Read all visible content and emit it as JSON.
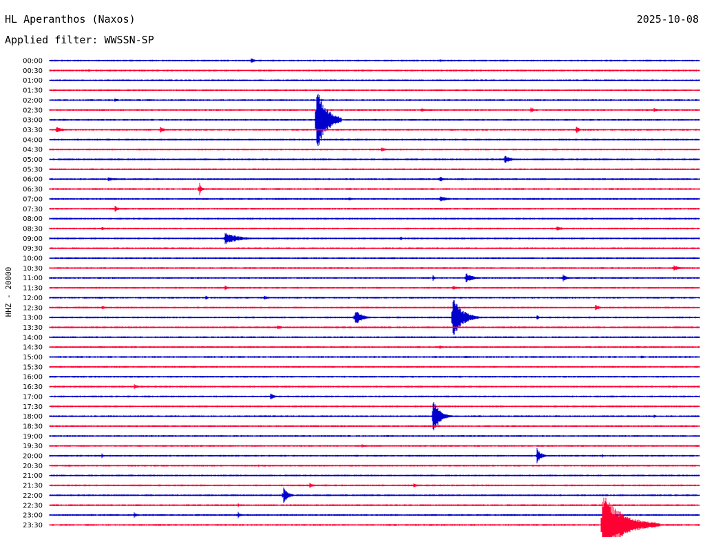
{
  "header": {
    "station": "HL Aperanthos (Naxos)",
    "date": "2025-10-08",
    "filter": "Applied filter: WWSSN-SP"
  },
  "chart_data": {
    "type": "line",
    "title": "HL Aperanthos (Naxos)",
    "subtitle": "Applied filter: WWSSN-SP",
    "ylabel": "HHZ - 20000",
    "xlabel": "",
    "grid": false,
    "colors": [
      "#0000cc",
      "#ff0033"
    ],
    "categories": [
      "00:00",
      "00:30",
      "01:00",
      "01:30",
      "02:00",
      "02:30",
      "03:00",
      "03:30",
      "04:00",
      "04:30",
      "05:00",
      "05:30",
      "06:00",
      "06:30",
      "07:00",
      "07:30",
      "08:00",
      "08:30",
      "09:00",
      "09:30",
      "10:00",
      "10:30",
      "11:00",
      "11:30",
      "12:00",
      "12:30",
      "13:00",
      "13:30",
      "14:00",
      "14:30",
      "15:00",
      "15:30",
      "16:00",
      "16:30",
      "17:00",
      "17:30",
      "18:00",
      "18:30",
      "19:00",
      "19:30",
      "20:00",
      "20:30",
      "21:00",
      "21:30",
      "22:00",
      "22:30",
      "23:00",
      "23:30"
    ],
    "events": [
      {
        "row": 0,
        "x": 0.31,
        "amp": 4,
        "dur": 0.02
      },
      {
        "row": 0,
        "x": 0.6,
        "amp": 2.5,
        "dur": 0.01
      },
      {
        "row": 1,
        "x": 0.06,
        "amp": 3,
        "dur": 0.01
      },
      {
        "row": 1,
        "x": 0.48,
        "amp": 2,
        "dur": 0.01
      },
      {
        "row": 4,
        "x": 0.1,
        "amp": 3,
        "dur": 0.02
      },
      {
        "row": 5,
        "x": 0.57,
        "amp": 3,
        "dur": 0.03
      },
      {
        "row": 5,
        "x": 0.74,
        "amp": 4,
        "dur": 0.02
      },
      {
        "row": 5,
        "x": 0.93,
        "amp": 3,
        "dur": 0.02
      },
      {
        "row": 6,
        "x": 0.41,
        "amp": 58,
        "dur": 0.04
      },
      {
        "row": 7,
        "x": 0.01,
        "amp": 5,
        "dur": 0.03
      },
      {
        "row": 7,
        "x": 0.17,
        "amp": 5,
        "dur": 0.02
      },
      {
        "row": 7,
        "x": 0.81,
        "amp": 6,
        "dur": 0.015
      },
      {
        "row": 9,
        "x": 0.51,
        "amp": 4,
        "dur": 0.02
      },
      {
        "row": 10,
        "x": 0.7,
        "amp": 6,
        "dur": 0.03
      },
      {
        "row": 12,
        "x": 0.09,
        "amp": 3,
        "dur": 0.04
      },
      {
        "row": 12,
        "x": 0.6,
        "amp": 5,
        "dur": 0.02
      },
      {
        "row": 13,
        "x": 0.23,
        "amp": 12,
        "dur": 0.01
      },
      {
        "row": 14,
        "x": 0.46,
        "amp": 3,
        "dur": 0.02
      },
      {
        "row": 14,
        "x": 0.6,
        "amp": 4,
        "dur": 0.05
      },
      {
        "row": 15,
        "x": 0.1,
        "amp": 5,
        "dur": 0.02
      },
      {
        "row": 17,
        "x": 0.08,
        "amp": 3,
        "dur": 0.02
      },
      {
        "row": 17,
        "x": 0.78,
        "amp": 5,
        "dur": 0.02
      },
      {
        "row": 18,
        "x": 0.27,
        "amp": 9,
        "dur": 0.06
      },
      {
        "row": 18,
        "x": 0.54,
        "amp": 4,
        "dur": 0.01
      },
      {
        "row": 21,
        "x": 0.96,
        "amp": 6,
        "dur": 0.02
      },
      {
        "row": 22,
        "x": 0.59,
        "amp": 5,
        "dur": 0.01
      },
      {
        "row": 22,
        "x": 0.64,
        "amp": 8,
        "dur": 0.03
      },
      {
        "row": 22,
        "x": 0.79,
        "amp": 6,
        "dur": 0.02
      },
      {
        "row": 23,
        "x": 0.27,
        "amp": 6,
        "dur": 0.01
      },
      {
        "row": 23,
        "x": 0.62,
        "amp": 3,
        "dur": 0.03
      },
      {
        "row": 24,
        "x": 0.24,
        "amp": 4,
        "dur": 0.01
      },
      {
        "row": 24,
        "x": 0.33,
        "amp": 4,
        "dur": 0.02
      },
      {
        "row": 25,
        "x": 0.08,
        "amp": 3,
        "dur": 0.02
      },
      {
        "row": 25,
        "x": 0.84,
        "amp": 4,
        "dur": 0.02
      },
      {
        "row": 26,
        "x": 0.47,
        "amp": 12,
        "dur": 0.03
      },
      {
        "row": 26,
        "x": 0.62,
        "amp": 35,
        "dur": 0.04
      },
      {
        "row": 26,
        "x": 0.75,
        "amp": 5,
        "dur": 0.01
      },
      {
        "row": 27,
        "x": 0.35,
        "amp": 3,
        "dur": 0.03
      },
      {
        "row": 29,
        "x": 0.6,
        "amp": 3,
        "dur": 0.02
      },
      {
        "row": 30,
        "x": 0.64,
        "amp": 3,
        "dur": 0.01
      },
      {
        "row": 30,
        "x": 0.91,
        "amp": 3,
        "dur": 0.02
      },
      {
        "row": 33,
        "x": 0.13,
        "amp": 4,
        "dur": 0.02
      },
      {
        "row": 34,
        "x": 0.34,
        "amp": 6,
        "dur": 0.015
      },
      {
        "row": 36,
        "x": 0.59,
        "amp": 26,
        "dur": 0.03
      },
      {
        "row": 36,
        "x": 0.93,
        "amp": 3,
        "dur": 0.01
      },
      {
        "row": 39,
        "x": 0.48,
        "amp": 3,
        "dur": 0.02
      },
      {
        "row": 40,
        "x": 0.08,
        "amp": 4,
        "dur": 0.01
      },
      {
        "row": 40,
        "x": 0.75,
        "amp": 11,
        "dur": 0.02
      },
      {
        "row": 40,
        "x": 0.85,
        "amp": 3,
        "dur": 0.01
      },
      {
        "row": 41,
        "x": 0.03,
        "amp": 3,
        "dur": 0.01
      },
      {
        "row": 41,
        "x": 0.32,
        "amp": 3,
        "dur": 0.01
      },
      {
        "row": 43,
        "x": 0.4,
        "amp": 4,
        "dur": 0.02
      },
      {
        "row": 43,
        "x": 0.56,
        "amp": 4,
        "dur": 0.02
      },
      {
        "row": 44,
        "x": 0.36,
        "amp": 13,
        "dur": 0.02
      },
      {
        "row": 45,
        "x": 0.29,
        "amp": 3,
        "dur": 0.01
      },
      {
        "row": 46,
        "x": 0.13,
        "amp": 5,
        "dur": 0.01
      },
      {
        "row": 46,
        "x": 0.29,
        "amp": 5,
        "dur": 0.01
      },
      {
        "row": 47,
        "x": 0.85,
        "amp": 48,
        "dur": 0.09
      }
    ]
  }
}
